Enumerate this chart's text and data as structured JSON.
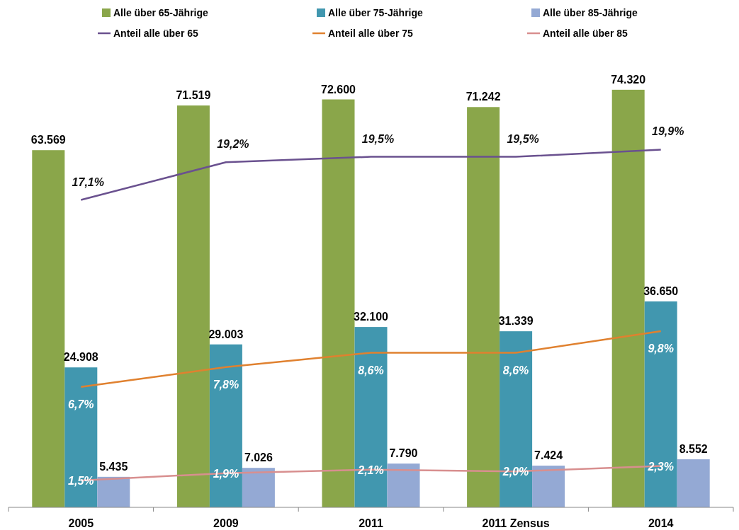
{
  "chart_data": {
    "type": "bar",
    "categories": [
      "2005",
      "2009",
      "2011",
      "2011 Zensus",
      "2014"
    ],
    "tick_labels": "x",
    "legend": "top",
    "series": [
      {
        "name": "Alle über 65-Jährige",
        "color": "#8aa64a",
        "values": [
          63569,
          71519,
          72600,
          71242,
          74320
        ],
        "value_labels": [
          "63.569",
          "71.519",
          "72.600",
          "71.242",
          "74.320"
        ]
      },
      {
        "name": "Alle über 75-Jährige",
        "color": "#4197af",
        "values": [
          24908,
          29003,
          32100,
          31339,
          36650
        ],
        "value_labels": [
          "24.908",
          "29.003",
          "32.100",
          "31.339",
          "36.650"
        ]
      },
      {
        "name": "Alle über 85-Jährige",
        "color": "#94a9d4",
        "values": [
          5435,
          7026,
          7790,
          7424,
          8552
        ],
        "value_labels": [
          "5.435",
          "7.026",
          "7.790",
          "7.424",
          "8.552"
        ]
      },
      {
        "name": "Anteil alle über 65",
        "type": "line",
        "axis": "y2",
        "color": "#6a518f",
        "values": [
          17.1,
          19.2,
          19.5,
          19.5,
          19.9
        ],
        "value_labels": [
          "17,1%",
          "19,2%",
          "19,5%",
          "19,5%",
          "19,9%"
        ]
      },
      {
        "name": "Anteil alle über 75",
        "type": "line",
        "axis": "y2",
        "color": "#e0812f",
        "values": [
          6.7,
          7.8,
          8.6,
          8.6,
          9.8
        ],
        "value_labels": [
          "6,7%",
          "7,8%",
          "8,6%",
          "8,6%",
          "9,8%"
        ]
      },
      {
        "name": "Anteil alle über 85",
        "type": "line",
        "axis": "y2",
        "color": "#d88f8f",
        "values": [
          1.5,
          1.9,
          2.1,
          2.0,
          2.3
        ],
        "value_labels": [
          "1,5%",
          "1,9%",
          "2,1%",
          "2,0%",
          "2,3%"
        ]
      }
    ]
  }
}
